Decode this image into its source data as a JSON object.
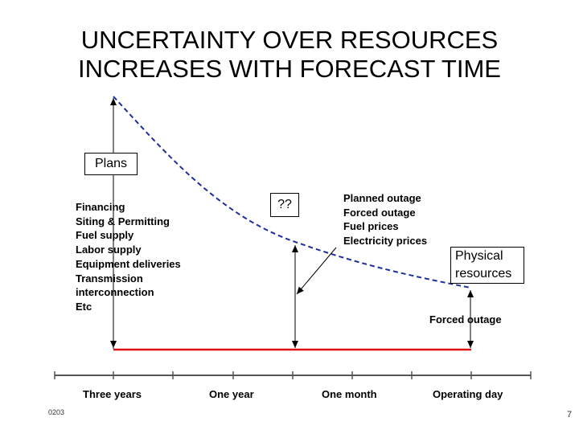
{
  "title": {
    "line1": "UNCERTAINTY OVER RESOURCES",
    "line2": "INCREASES WITH FORECAST TIME"
  },
  "boxes": {
    "plans": "Plans",
    "unknown": "??",
    "physical_line1": "Physical",
    "physical_line2": "resources"
  },
  "plans_factors": [
    "Financing",
    "Siting & Permitting",
    "Fuel supply",
    "Labor supply",
    "Equipment deliveries",
    "Transmission",
    "interconnection",
    "Etc"
  ],
  "near_term_factors": [
    "Planned outage",
    "Forced outage",
    "Fuel prices",
    "Electricity prices"
  ],
  "forced_outage_label": "Forced outage",
  "timeline": [
    "Three years",
    "One year",
    "One month",
    "Operating day"
  ],
  "footer": {
    "left_mark": "0203",
    "page_number": "7"
  },
  "colors": {
    "curve": "#1f2f9c",
    "baseline": "#e01010",
    "axis": "#555555"
  }
}
